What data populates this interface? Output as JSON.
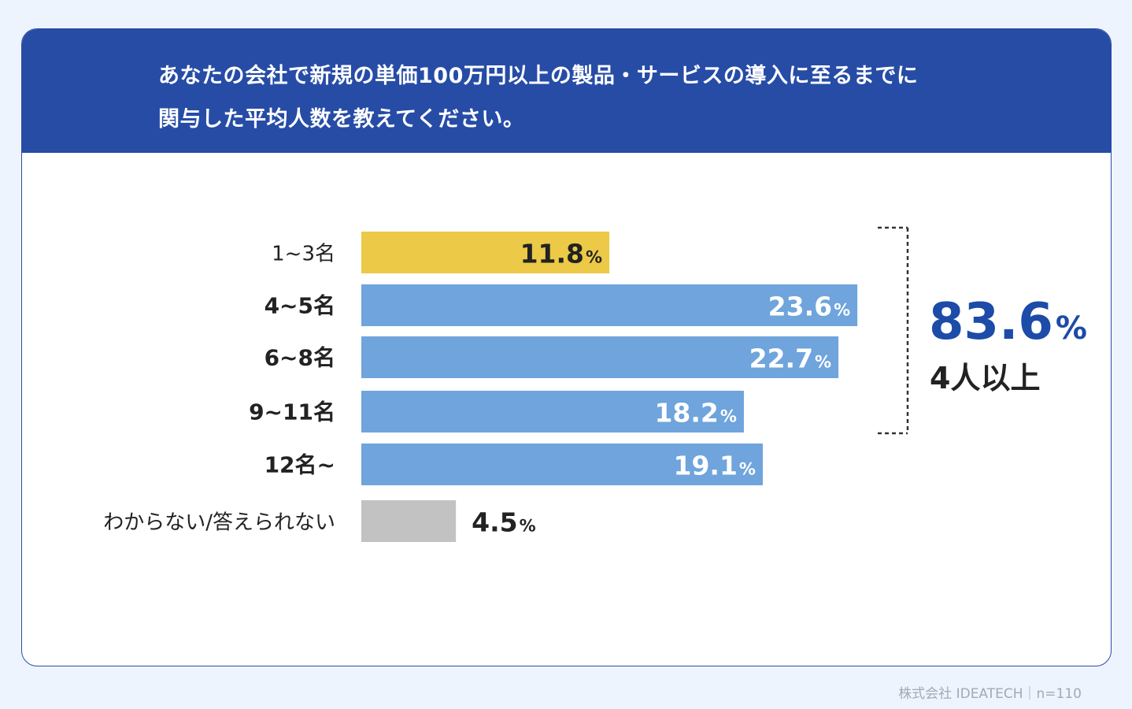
{
  "question": {
    "line1": "あなたの会社で新規の単価100万円以上の製品・サービスの導入に至るまでに",
    "line2": "関与した平均人数を教えてください。"
  },
  "summary": {
    "value": "83.6",
    "unit": "%",
    "label": "4人以上"
  },
  "footer": "株式会社 IDEATECH｜n=110",
  "colors": {
    "header": "#264ca6",
    "highlight": "#ecc946",
    "primary": "#6fa4dc",
    "unknown": "#c2c2c2",
    "summary_value": "#1c4ba8",
    "text_dark": "#222222"
  },
  "chart_data": {
    "type": "bar",
    "orientation": "horizontal",
    "categories": [
      "1~3名",
      "4~5名",
      "6~8名",
      "9~11名",
      "12名~",
      "わからない/答えられない"
    ],
    "values": [
      11.8,
      23.6,
      22.7,
      18.2,
      19.1,
      4.5
    ],
    "value_labels": [
      "11.8",
      "23.6",
      "22.7",
      "18.2",
      "19.1",
      "4.5"
    ],
    "unit": "%",
    "bar_colors": [
      "#ecc946",
      "#6fa4dc",
      "#6fa4dc",
      "#6fa4dc",
      "#6fa4dc",
      "#c2c2c2"
    ],
    "bold_categories": [
      false,
      true,
      true,
      true,
      true,
      false
    ],
    "label_inside": [
      true,
      true,
      true,
      true,
      true,
      false
    ],
    "label_color": [
      "#222222",
      "#ffffff",
      "#ffffff",
      "#ffffff",
      "#ffffff",
      "#222222"
    ],
    "bracket_categories": [
      "4~5名",
      "6~8名",
      "9~11名"
    ],
    "grid": false,
    "title": "",
    "xlabel": "",
    "ylabel": ""
  }
}
